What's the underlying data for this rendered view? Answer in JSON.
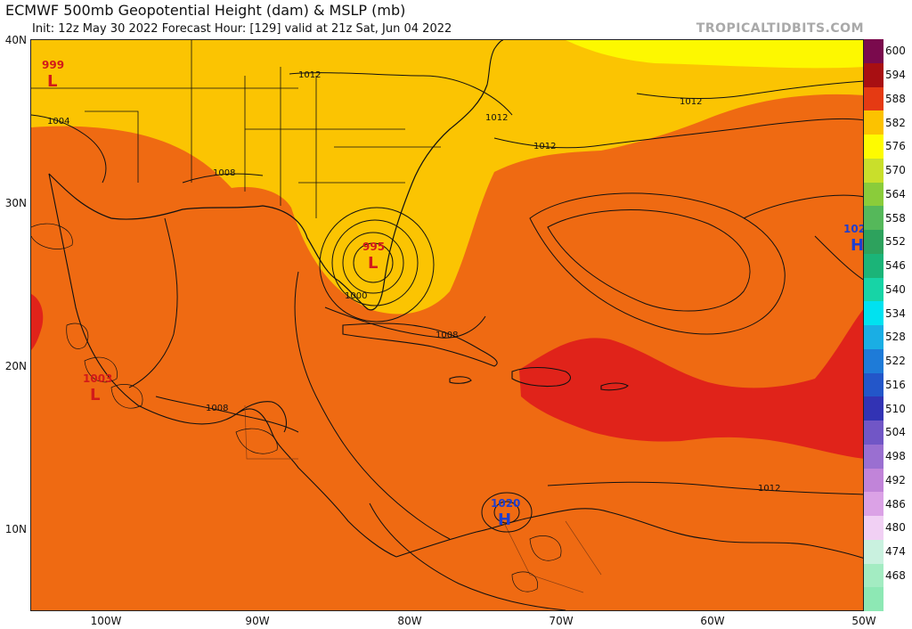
{
  "header": {
    "title": "ECMWF 500mb Geopotential Height (dam) & MSLP (mb)",
    "subtitle": "Init: 12z May 30 2022   Forecast Hour: [129]   valid at 21z Sat, Jun 04 2022",
    "site": "TROPICALTIDBITS.COM"
  },
  "axes": {
    "lat_labels": [
      "40N",
      "30N",
      "20N",
      "10N"
    ],
    "lon_labels": [
      "100W",
      "90W",
      "80W",
      "70W",
      "60W",
      "50W"
    ]
  },
  "colorbar": {
    "labels": [
      "600",
      "594",
      "588",
      "582",
      "576",
      "570",
      "564",
      "558",
      "552",
      "546",
      "540",
      "534",
      "528",
      "522",
      "516",
      "510",
      "504",
      "498",
      "492",
      "486",
      "480",
      "474",
      "468"
    ],
    "colors": [
      "#7a0a4d",
      "#a80f12",
      "#e53a13",
      "#fcc200",
      "#fefb00",
      "#c9df2b",
      "#8acc3a",
      "#55b85a",
      "#2da25d",
      "#1bb478",
      "#17d4a6",
      "#00e2f0",
      "#1aaee4",
      "#1e7bd8",
      "#2356c9",
      "#3233b4",
      "#7156c6",
      "#9a6fd1",
      "#c184d9",
      "#dba2e6",
      "#f1d0f4",
      "#c9f1df",
      "#a3ecc2"
    ]
  },
  "map_colors": {
    "z588": "#ef6a12",
    "z582": "#fbc402",
    "z576": "#fdf800",
    "z594": "#e0231a"
  },
  "systems": [
    {
      "type": "L",
      "value": "999"
    },
    {
      "type": "L",
      "value": "995"
    },
    {
      "type": "L",
      "value": "1003"
    },
    {
      "type": "H",
      "value": "1020"
    },
    {
      "type": "H",
      "value": "102"
    }
  ],
  "isobars": [
    "1012",
    "1012",
    "1012",
    "1012",
    "1004",
    "1008",
    "1000",
    "1008",
    "1008",
    "1012"
  ]
}
